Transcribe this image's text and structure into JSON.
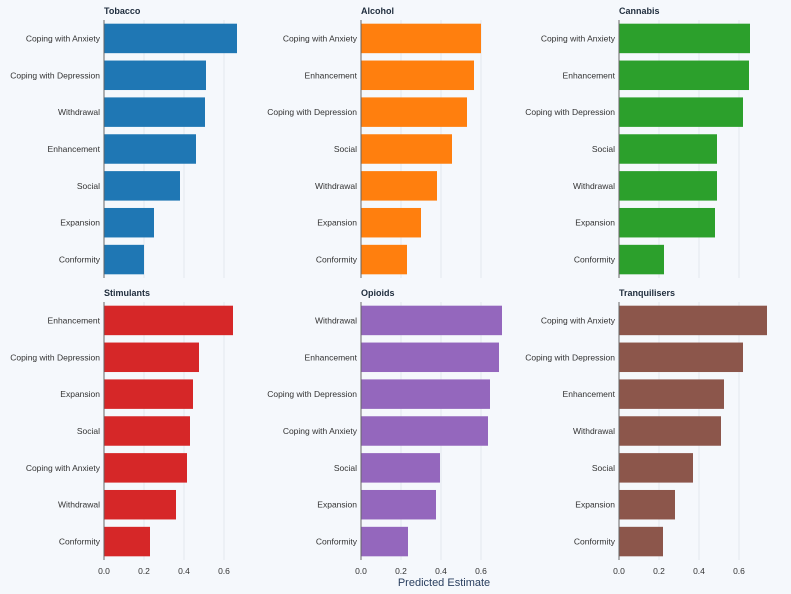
{
  "chart_data": {
    "type": "bar",
    "orientation": "horizontal",
    "xlabel": "Predicted Estimate",
    "xlim": [
      0,
      0.75
    ],
    "xticks": [
      "0.0",
      "0.2",
      "0.4",
      "0.6"
    ],
    "grid": true,
    "panels": [
      {
        "title": "Tobacco",
        "color": "#1f77b4",
        "categories": [
          "Coping with Anxiety",
          "Coping with Depression",
          "Withdrawal",
          "Enhancement",
          "Social",
          "Expansion",
          "Conformity"
        ],
        "values": [
          0.665,
          0.51,
          0.505,
          0.46,
          0.38,
          0.25,
          0.2
        ]
      },
      {
        "title": "Alcohol",
        "color": "#ff7f0e",
        "categories": [
          "Coping with Anxiety",
          "Enhancement",
          "Coping with Depression",
          "Social",
          "Withdrawal",
          "Expansion",
          "Conformity"
        ],
        "values": [
          0.6,
          0.565,
          0.53,
          0.455,
          0.38,
          0.3,
          0.23
        ]
      },
      {
        "title": "Cannabis",
        "color": "#2ca02c",
        "categories": [
          "Coping with Anxiety",
          "Enhancement",
          "Coping with Depression",
          "Social",
          "Withdrawal",
          "Expansion",
          "Conformity"
        ],
        "values": [
          0.655,
          0.65,
          0.62,
          0.49,
          0.49,
          0.48,
          0.225
        ]
      },
      {
        "title": "Stimulants",
        "color": "#d62728",
        "categories": [
          "Enhancement",
          "Coping with Depression",
          "Expansion",
          "Social",
          "Coping with Anxiety",
          "Withdrawal",
          "Conformity"
        ],
        "values": [
          0.645,
          0.475,
          0.445,
          0.43,
          0.415,
          0.36,
          0.23
        ]
      },
      {
        "title": "Opioids",
        "color": "#9467bd",
        "categories": [
          "Withdrawal",
          "Enhancement",
          "Coping with Depression",
          "Coping with Anxiety",
          "Social",
          "Expansion",
          "Conformity"
        ],
        "values": [
          0.705,
          0.69,
          0.645,
          0.635,
          0.395,
          0.375,
          0.235
        ]
      },
      {
        "title": "Tranquilisers",
        "color": "#8c564b",
        "categories": [
          "Coping with Anxiety",
          "Coping with Depression",
          "Enhancement",
          "Withdrawal",
          "Social",
          "Expansion",
          "Conformity"
        ],
        "values": [
          0.74,
          0.62,
          0.525,
          0.51,
          0.37,
          0.28,
          0.22
        ]
      }
    ]
  }
}
